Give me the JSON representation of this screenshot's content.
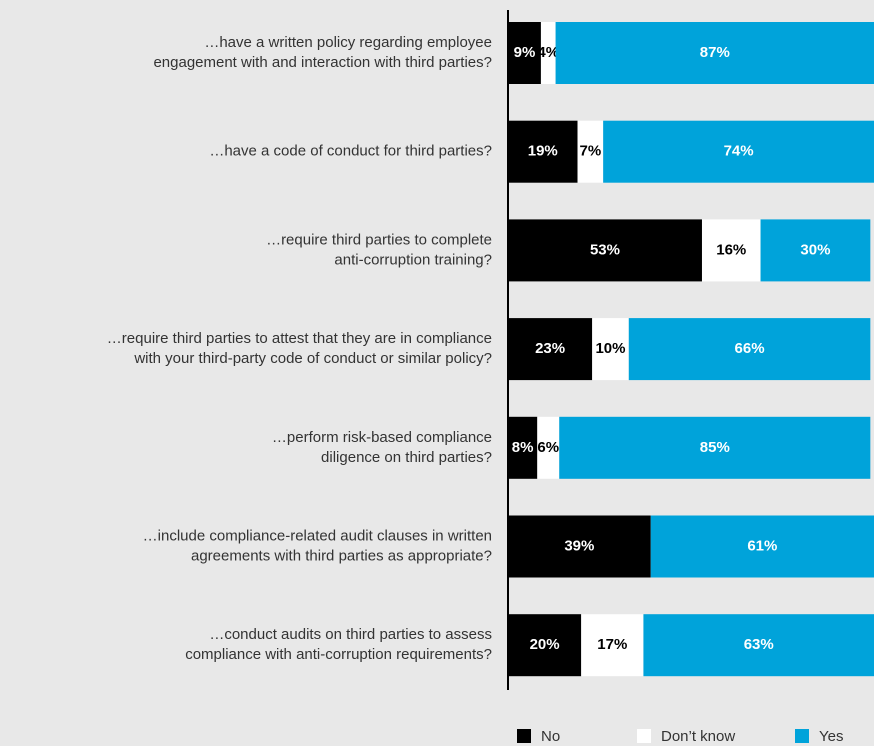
{
  "chart_data": {
    "type": "stacked_bar_horizontal",
    "categories": [
      [
        "…have a written policy regarding employee",
        "engagement with and interaction with third parties?"
      ],
      [
        "…have a code of conduct for third parties?"
      ],
      [
        "…require third parties to complete",
        "anti-corruption training?"
      ],
      [
        "…require third parties to attest that they are in compliance",
        "with your third-party code of conduct or similar policy?"
      ],
      [
        "…perform risk-based compliance",
        "diligence on third parties?"
      ],
      [
        "…include compliance-related audit clauses in written",
        "agreements with third parties as appropriate?"
      ],
      [
        "…conduct audits on third parties to assess",
        "compliance with anti-corruption requirements?"
      ]
    ],
    "series": [
      {
        "name": "No",
        "color": "#000000",
        "label_color": "#ffffff",
        "values": [
          9,
          19,
          53,
          23,
          8,
          39,
          20
        ],
        "value_labels": [
          "9%",
          "19%",
          "53%",
          "23%",
          "8%",
          "39%",
          "20%"
        ]
      },
      {
        "name": "Don’t know",
        "color": "#ffffff",
        "label_color": "#000000",
        "values": [
          4,
          7,
          16,
          10,
          6,
          0,
          17
        ],
        "value_labels": [
          "4%",
          "7%",
          "16%",
          "10%",
          "6%",
          null,
          "17%"
        ]
      },
      {
        "name": "Yes",
        "color": "#00a3da",
        "label_color": "#ffffff",
        "values": [
          87,
          74,
          30,
          66,
          85,
          61,
          63
        ],
        "value_labels": [
          "87%",
          "74%",
          "30%",
          "66%",
          "85%",
          "61%",
          "63%"
        ]
      }
    ],
    "xlim": [
      0,
      100
    ]
  }
}
